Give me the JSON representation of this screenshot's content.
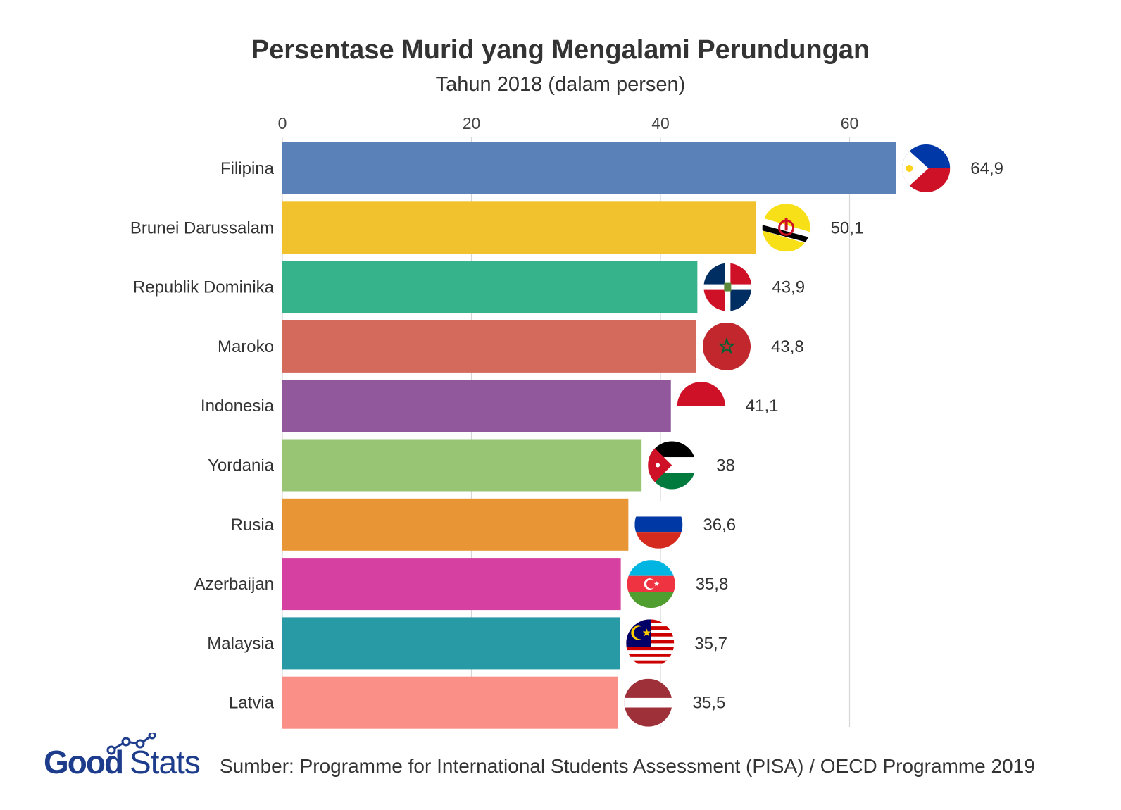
{
  "chart_data": {
    "type": "bar",
    "orientation": "horizontal",
    "title": "Persentase Murid yang Mengalami Perundungan",
    "subtitle": "Tahun 2018 (dalam persen)",
    "xlim": [
      0,
      70
    ],
    "x_ticks": [
      "0",
      "20",
      "40",
      "60"
    ],
    "x_tick_values": [
      0,
      20,
      40,
      60
    ],
    "grid": true,
    "categories": [
      "Filipina",
      "Brunei Darussalam",
      "Republik Dominika",
      "Maroko",
      "Indonesia",
      "Yordania",
      "Rusia",
      "Azerbaijan",
      "Malaysia",
      "Latvia"
    ],
    "values": [
      64.9,
      50.1,
      43.9,
      43.8,
      41.1,
      38,
      36.6,
      35.8,
      35.7,
      35.5
    ],
    "value_labels": [
      "64,9",
      "50,1",
      "43,9",
      "43,8",
      "41,1",
      "38",
      "36,6",
      "35,8",
      "35,7",
      "35,5"
    ],
    "colors": [
      "#5A81B8",
      "#F2C12E",
      "#37B38B",
      "#D46A5C",
      "#91599C",
      "#98C573",
      "#E89535",
      "#D640A0",
      "#279AA6",
      "#F98F87"
    ],
    "flags": [
      "philippines-flag",
      "brunei-flag",
      "dominican-republic-flag",
      "morocco-flag",
      "indonesia-flag",
      "jordan-flag",
      "russia-flag",
      "azerbaijan-flag",
      "malaysia-flag",
      "latvia-flag"
    ]
  },
  "footer": {
    "logo_text": "GoodStats",
    "source": "Sumber: Programme for International Students Assessment (PISA) / OECD Programme 2019"
  }
}
